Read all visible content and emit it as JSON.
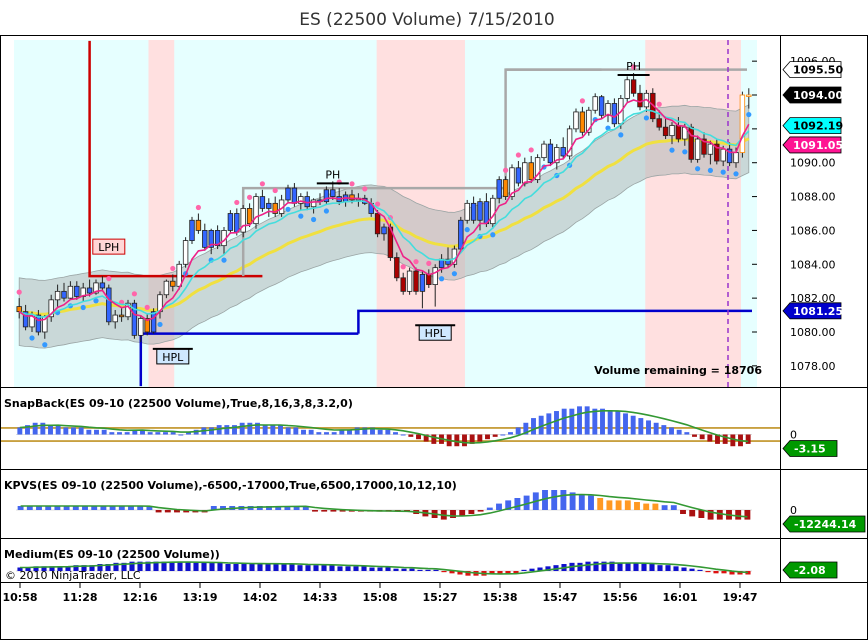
{
  "chart_data": {
    "type": "candlestick",
    "title": "ES (22500 Volume)  7/15/2010",
    "time_ticks": [
      "10:58",
      "11:28",
      "12:16",
      "13:19",
      "14:02",
      "14:33",
      "15:08",
      "15:27",
      "15:38",
      "15:47",
      "15:56",
      "16:01",
      "19:47"
    ],
    "price_ticks": [
      "1078.00",
      "1080.00",
      "1082.00",
      "1084.00",
      "1086.00",
      "1088.00",
      "1090.00",
      "1092.00",
      "1094.00",
      "1096.00"
    ],
    "ylim": [
      1076.75,
      1097.25
    ],
    "price_badges": [
      {
        "label": "1095.50",
        "value": 1095.5,
        "bg": "#ffffff",
        "fg": "#000000"
      },
      {
        "label": "1094.00",
        "value": 1094.0,
        "bg": "#000000",
        "fg": "#ffffff"
      },
      {
        "label": "1092.19",
        "value": 1092.19,
        "bg": "#00ffff",
        "fg": "#000000"
      },
      {
        "label": "1091.05",
        "value": 1091.05,
        "bg": "#ff1493",
        "fg": "#ffffff"
      },
      {
        "label": "1081.25",
        "value": 1081.25,
        "bg": "#0000cc",
        "fg": "#ffffff"
      }
    ],
    "pivots": [
      {
        "label": "LPH",
        "bar": 14,
        "value": 1084.6
      },
      {
        "label": "PH",
        "bar": 49,
        "value": 1088.9
      },
      {
        "label": "HPL",
        "bar": 24,
        "value": 1079.0
      },
      {
        "label": "HPL",
        "bar": 65,
        "value": 1080.4
      },
      {
        "label": "PH",
        "bar": 96,
        "value": 1095.3
      }
    ],
    "volume_remaining_label": "Volume remaining = 18706",
    "candles": [
      {
        "o": 1081.5,
        "h": 1082.0,
        "l": 1080.8,
        "c": 1081.2
      },
      {
        "o": 1081.2,
        "h": 1081.6,
        "l": 1080.1,
        "c": 1080.3
      },
      {
        "o": 1080.3,
        "h": 1081.2,
        "l": 1080.0,
        "c": 1081.0
      },
      {
        "o": 1081.0,
        "h": 1081.3,
        "l": 1079.8,
        "c": 1080.0
      },
      {
        "o": 1080.0,
        "h": 1081.0,
        "l": 1079.6,
        "c": 1080.9
      },
      {
        "o": 1080.9,
        "h": 1082.2,
        "l": 1080.6,
        "c": 1081.9
      },
      {
        "o": 1081.9,
        "h": 1082.8,
        "l": 1081.5,
        "c": 1082.4
      },
      {
        "o": 1082.4,
        "h": 1082.9,
        "l": 1081.8,
        "c": 1082.0
      },
      {
        "o": 1082.0,
        "h": 1083.0,
        "l": 1081.9,
        "c": 1082.7
      },
      {
        "o": 1082.7,
        "h": 1083.0,
        "l": 1081.9,
        "c": 1082.1
      },
      {
        "o": 1082.1,
        "h": 1082.9,
        "l": 1081.8,
        "c": 1082.6
      },
      {
        "o": 1082.6,
        "h": 1083.1,
        "l": 1082.1,
        "c": 1082.3
      },
      {
        "o": 1082.3,
        "h": 1083.1,
        "l": 1082.2,
        "c": 1082.9
      },
      {
        "o": 1082.9,
        "h": 1083.3,
        "l": 1082.4,
        "c": 1082.6
      },
      {
        "o": 1082.6,
        "h": 1082.8,
        "l": 1080.4,
        "c": 1080.6
      },
      {
        "o": 1080.6,
        "h": 1081.3,
        "l": 1080.2,
        "c": 1081.0
      },
      {
        "o": 1081.0,
        "h": 1081.4,
        "l": 1080.6,
        "c": 1080.9
      },
      {
        "o": 1080.9,
        "h": 1081.9,
        "l": 1080.7,
        "c": 1081.7
      },
      {
        "o": 1081.7,
        "h": 1081.9,
        "l": 1079.6,
        "c": 1079.8
      },
      {
        "o": 1079.8,
        "h": 1081.0,
        "l": 1079.4,
        "c": 1080.8
      },
      {
        "o": 1080.8,
        "h": 1081.1,
        "l": 1079.8,
        "c": 1080.0
      },
      {
        "o": 1080.0,
        "h": 1081.4,
        "l": 1079.9,
        "c": 1081.2
      },
      {
        "o": 1081.2,
        "h": 1082.4,
        "l": 1080.8,
        "c": 1082.2
      },
      {
        "o": 1082.2,
        "h": 1083.1,
        "l": 1082.0,
        "c": 1083.0
      },
      {
        "o": 1083.0,
        "h": 1083.4,
        "l": 1082.4,
        "c": 1082.7
      },
      {
        "o": 1082.7,
        "h": 1084.2,
        "l": 1082.5,
        "c": 1084.0
      },
      {
        "o": 1084.0,
        "h": 1085.6,
        "l": 1083.8,
        "c": 1085.4
      },
      {
        "o": 1085.4,
        "h": 1086.8,
        "l": 1085.2,
        "c": 1086.6
      },
      {
        "o": 1086.6,
        "h": 1087.0,
        "l": 1085.8,
        "c": 1086.0
      },
      {
        "o": 1086.0,
        "h": 1086.4,
        "l": 1084.8,
        "c": 1085.0
      },
      {
        "o": 1085.0,
        "h": 1086.1,
        "l": 1084.6,
        "c": 1086.0
      },
      {
        "o": 1086.0,
        "h": 1086.3,
        "l": 1084.9,
        "c": 1085.1
      },
      {
        "o": 1085.1,
        "h": 1086.2,
        "l": 1084.6,
        "c": 1086.0
      },
      {
        "o": 1086.0,
        "h": 1087.2,
        "l": 1085.8,
        "c": 1087.0
      },
      {
        "o": 1087.0,
        "h": 1087.3,
        "l": 1085.7,
        "c": 1085.9
      },
      {
        "o": 1085.9,
        "h": 1087.5,
        "l": 1085.6,
        "c": 1087.3
      },
      {
        "o": 1087.3,
        "h": 1087.6,
        "l": 1086.2,
        "c": 1086.4
      },
      {
        "o": 1086.4,
        "h": 1088.2,
        "l": 1086.1,
        "c": 1088.0
      },
      {
        "o": 1088.0,
        "h": 1088.4,
        "l": 1087.1,
        "c": 1087.3
      },
      {
        "o": 1087.3,
        "h": 1087.9,
        "l": 1086.8,
        "c": 1087.6
      },
      {
        "o": 1087.6,
        "h": 1088.0,
        "l": 1086.8,
        "c": 1087.0
      },
      {
        "o": 1087.0,
        "h": 1088.1,
        "l": 1086.8,
        "c": 1087.8
      },
      {
        "o": 1087.8,
        "h": 1088.7,
        "l": 1087.6,
        "c": 1088.5
      },
      {
        "o": 1088.5,
        "h": 1088.8,
        "l": 1087.4,
        "c": 1087.6
      },
      {
        "o": 1087.6,
        "h": 1088.2,
        "l": 1087.2,
        "c": 1088.0
      },
      {
        "o": 1088.0,
        "h": 1088.3,
        "l": 1087.2,
        "c": 1087.4
      },
      {
        "o": 1087.4,
        "h": 1087.9,
        "l": 1087.0,
        "c": 1087.8
      },
      {
        "o": 1087.8,
        "h": 1088.2,
        "l": 1087.5,
        "c": 1087.7
      },
      {
        "o": 1087.7,
        "h": 1088.6,
        "l": 1087.5,
        "c": 1088.4
      },
      {
        "o": 1088.4,
        "h": 1088.9,
        "l": 1087.8,
        "c": 1088.0
      },
      {
        "o": 1088.0,
        "h": 1088.5,
        "l": 1087.5,
        "c": 1087.7
      },
      {
        "o": 1087.7,
        "h": 1088.3,
        "l": 1087.4,
        "c": 1088.1
      },
      {
        "o": 1088.1,
        "h": 1088.4,
        "l": 1087.6,
        "c": 1087.8
      },
      {
        "o": 1087.8,
        "h": 1088.2,
        "l": 1087.4,
        "c": 1087.9
      },
      {
        "o": 1087.9,
        "h": 1088.1,
        "l": 1087.5,
        "c": 1087.6
      },
      {
        "o": 1087.6,
        "h": 1087.9,
        "l": 1086.8,
        "c": 1087.0
      },
      {
        "o": 1087.0,
        "h": 1087.2,
        "l": 1085.6,
        "c": 1085.8
      },
      {
        "o": 1085.8,
        "h": 1086.4,
        "l": 1085.4,
        "c": 1086.2
      },
      {
        "o": 1086.2,
        "h": 1086.4,
        "l": 1084.2,
        "c": 1084.4
      },
      {
        "o": 1084.4,
        "h": 1084.7,
        "l": 1083.0,
        "c": 1083.2
      },
      {
        "o": 1083.2,
        "h": 1083.5,
        "l": 1082.2,
        "c": 1082.4
      },
      {
        "o": 1082.4,
        "h": 1083.8,
        "l": 1082.2,
        "c": 1083.6
      },
      {
        "o": 1083.6,
        "h": 1083.8,
        "l": 1082.2,
        "c": 1082.4
      },
      {
        "o": 1082.4,
        "h": 1083.6,
        "l": 1081.4,
        "c": 1083.4
      },
      {
        "o": 1083.4,
        "h": 1083.7,
        "l": 1082.6,
        "c": 1082.8
      },
      {
        "o": 1082.8,
        "h": 1084.0,
        "l": 1081.5,
        "c": 1083.8
      },
      {
        "o": 1083.8,
        "h": 1084.6,
        "l": 1083.5,
        "c": 1084.3
      },
      {
        "o": 1084.3,
        "h": 1085.0,
        "l": 1083.8,
        "c": 1084.0
      },
      {
        "o": 1084.0,
        "h": 1085.1,
        "l": 1083.8,
        "c": 1084.9
      },
      {
        "o": 1084.9,
        "h": 1086.8,
        "l": 1084.7,
        "c": 1086.6
      },
      {
        "o": 1086.6,
        "h": 1087.8,
        "l": 1086.4,
        "c": 1087.6
      },
      {
        "o": 1087.6,
        "h": 1088.0,
        "l": 1086.4,
        "c": 1086.6
      },
      {
        "o": 1086.6,
        "h": 1087.9,
        "l": 1086.0,
        "c": 1087.7
      },
      {
        "o": 1087.7,
        "h": 1088.2,
        "l": 1086.2,
        "c": 1086.4
      },
      {
        "o": 1086.4,
        "h": 1088.1,
        "l": 1086.1,
        "c": 1087.9
      },
      {
        "o": 1087.9,
        "h": 1089.2,
        "l": 1087.6,
        "c": 1089.0
      },
      {
        "o": 1089.0,
        "h": 1089.2,
        "l": 1087.8,
        "c": 1088.0
      },
      {
        "o": 1088.0,
        "h": 1089.9,
        "l": 1087.8,
        "c": 1089.7
      },
      {
        "o": 1089.7,
        "h": 1090.1,
        "l": 1088.6,
        "c": 1088.8
      },
      {
        "o": 1088.8,
        "h": 1090.3,
        "l": 1088.6,
        "c": 1090.0
      },
      {
        "o": 1090.0,
        "h": 1090.4,
        "l": 1088.8,
        "c": 1089.0
      },
      {
        "o": 1089.0,
        "h": 1090.5,
        "l": 1088.8,
        "c": 1090.3
      },
      {
        "o": 1090.3,
        "h": 1091.3,
        "l": 1090.1,
        "c": 1091.1
      },
      {
        "o": 1091.1,
        "h": 1091.4,
        "l": 1089.8,
        "c": 1090.0
      },
      {
        "o": 1090.0,
        "h": 1091.1,
        "l": 1089.6,
        "c": 1090.9
      },
      {
        "o": 1090.9,
        "h": 1091.5,
        "l": 1090.2,
        "c": 1090.4
      },
      {
        "o": 1090.4,
        "h": 1092.2,
        "l": 1090.2,
        "c": 1092.0
      },
      {
        "o": 1092.0,
        "h": 1093.2,
        "l": 1091.8,
        "c": 1093.0
      },
      {
        "o": 1093.0,
        "h": 1093.3,
        "l": 1091.6,
        "c": 1091.8
      },
      {
        "o": 1091.8,
        "h": 1093.3,
        "l": 1091.6,
        "c": 1093.1
      },
      {
        "o": 1093.1,
        "h": 1094.1,
        "l": 1092.9,
        "c": 1093.9
      },
      {
        "o": 1093.9,
        "h": 1094.0,
        "l": 1092.6,
        "c": 1092.8
      },
      {
        "o": 1092.8,
        "h": 1093.7,
        "l": 1092.4,
        "c": 1093.5
      },
      {
        "o": 1093.5,
        "h": 1093.8,
        "l": 1092.1,
        "c": 1092.3
      },
      {
        "o": 1092.3,
        "h": 1094.0,
        "l": 1092.0,
        "c": 1093.8
      },
      {
        "o": 1093.8,
        "h": 1095.1,
        "l": 1093.6,
        "c": 1094.9
      },
      {
        "o": 1094.9,
        "h": 1095.3,
        "l": 1093.9,
        "c": 1094.1
      },
      {
        "o": 1094.1,
        "h": 1094.6,
        "l": 1093.1,
        "c": 1093.3
      },
      {
        "o": 1093.3,
        "h": 1094.3,
        "l": 1093.0,
        "c": 1094.1
      },
      {
        "o": 1094.1,
        "h": 1094.4,
        "l": 1092.4,
        "c": 1092.6
      },
      {
        "o": 1092.6,
        "h": 1093.1,
        "l": 1091.9,
        "c": 1092.1
      },
      {
        "o": 1092.1,
        "h": 1092.6,
        "l": 1091.4,
        "c": 1091.6
      },
      {
        "o": 1091.6,
        "h": 1092.4,
        "l": 1091.1,
        "c": 1092.2
      },
      {
        "o": 1092.2,
        "h": 1092.7,
        "l": 1091.2,
        "c": 1091.4
      },
      {
        "o": 1091.4,
        "h": 1092.3,
        "l": 1091.0,
        "c": 1092.1
      },
      {
        "o": 1092.1,
        "h": 1092.3,
        "l": 1090.0,
        "c": 1090.2
      },
      {
        "o": 1090.2,
        "h": 1091.6,
        "l": 1090.0,
        "c": 1091.4
      },
      {
        "o": 1091.4,
        "h": 1091.8,
        "l": 1090.3,
        "c": 1090.5
      },
      {
        "o": 1090.5,
        "h": 1091.3,
        "l": 1089.9,
        "c": 1091.1
      },
      {
        "o": 1091.1,
        "h": 1091.4,
        "l": 1089.9,
        "c": 1090.1
      },
      {
        "o": 1090.1,
        "h": 1091.0,
        "l": 1089.8,
        "c": 1090.8
      },
      {
        "o": 1090.8,
        "h": 1091.2,
        "l": 1089.8,
        "c": 1090.0
      },
      {
        "o": 1090.0,
        "h": 1090.9,
        "l": 1089.7,
        "c": 1090.6
      },
      {
        "o": 1090.6,
        "h": 1094.2,
        "l": 1090.3,
        "c": 1094.0
      },
      {
        "o": 1094.0,
        "h": 1094.4,
        "l": 1093.2,
        "c": 1094.0
      }
    ],
    "indicators": [
      {
        "label": "SnapBack(ES 09-10 (22500 Volume),True,8,16,3,8,3.2,0)",
        "zero_label": "0",
        "last_label": "-3.15",
        "last_bg": "#009900",
        "ylim": [
          -13,
          13
        ],
        "bands": [
          2.8,
          -2.8
        ],
        "values": [
          3,
          4,
          5,
          5,
          4,
          4,
          3,
          3,
          3,
          2,
          2,
          2,
          1,
          1,
          1,
          2,
          2,
          1,
          1,
          1,
          1,
          0,
          1,
          2,
          3,
          3,
          4,
          4,
          4,
          5,
          5,
          5,
          4,
          4,
          4,
          3,
          3,
          2,
          2,
          1,
          1,
          1,
          2,
          2,
          3,
          3,
          3,
          2,
          2,
          1,
          0,
          -1,
          -2,
          -3,
          -4,
          -4,
          -5,
          -5,
          -5,
          -4,
          -3,
          -2,
          -1,
          0,
          1,
          3,
          5,
          7,
          8,
          9,
          10,
          11,
          11,
          12,
          12,
          11,
          11,
          10,
          10,
          9,
          8,
          7,
          6,
          5,
          4,
          3,
          2,
          1,
          -1,
          -2,
          -3,
          -4,
          -4,
          -5,
          -5,
          -4
        ]
      },
      {
        "label": "KPVS(ES  09-10  (22500  Volume),-6500,-17000,True,6500,17000,10,12,10)",
        "zero_label": "0",
        "last_label": "-12244.14",
        "last_bg": "#009900",
        "ylim": [
          -30000,
          30000
        ],
        "values": [
          5000,
          5000,
          5000,
          5000,
          5000,
          5000,
          5000,
          5000,
          5000,
          5000,
          5000,
          5000,
          5000,
          5000,
          4000,
          -3000,
          -3000,
          -3000,
          -3000,
          -3000,
          -3000,
          5000,
          5000,
          5000,
          5000,
          5000,
          5000,
          5000,
          5000,
          5000,
          5000,
          5000,
          -2000,
          -2000,
          -2000,
          -2000,
          -2000,
          -2000,
          -2000,
          -2000,
          -2000,
          -2000,
          -2000,
          -5000,
          -8000,
          -10000,
          -12000,
          -10000,
          -8000,
          -5000,
          -2000,
          3000,
          8000,
          12000,
          15000,
          18000,
          22000,
          25000,
          25000,
          25000,
          22000,
          20000,
          18000,
          15000,
          12000,
          12000,
          12000,
          10000,
          8000,
          8000,
          6000,
          6000,
          -5000,
          -8000,
          -10000,
          -12000,
          -12000,
          -12000,
          -12000,
          -12000
        ]
      },
      {
        "label": "Medium(ES 09-10 (22500 Volume))",
        "last_label": "-2.08",
        "last_bg": "#009900",
        "ylim": [
          -12,
          12
        ],
        "values": [
          3,
          3,
          4,
          4,
          4,
          4,
          4,
          5,
          5,
          5,
          6,
          6,
          7,
          7,
          8,
          8,
          8,
          8,
          8,
          8,
          8,
          8,
          7,
          7,
          7,
          7,
          6,
          6,
          6,
          6,
          6,
          6,
          6,
          6,
          6,
          5,
          5,
          5,
          5,
          5,
          4,
          4,
          4,
          4,
          3,
          3,
          3,
          2,
          2,
          2,
          1,
          1,
          1,
          -1,
          -2,
          -3,
          -4,
          -4,
          -4,
          -3,
          -3,
          -2,
          -2,
          1,
          2,
          3,
          4,
          5,
          6,
          7,
          7,
          8,
          8,
          8,
          8,
          7,
          7,
          7,
          6,
          6,
          5,
          5,
          4,
          3,
          2,
          1,
          -1,
          -2,
          -2,
          -3,
          -3,
          -3
        ]
      }
    ]
  },
  "copyright": "© 2010 NinjaTrader, LLC"
}
